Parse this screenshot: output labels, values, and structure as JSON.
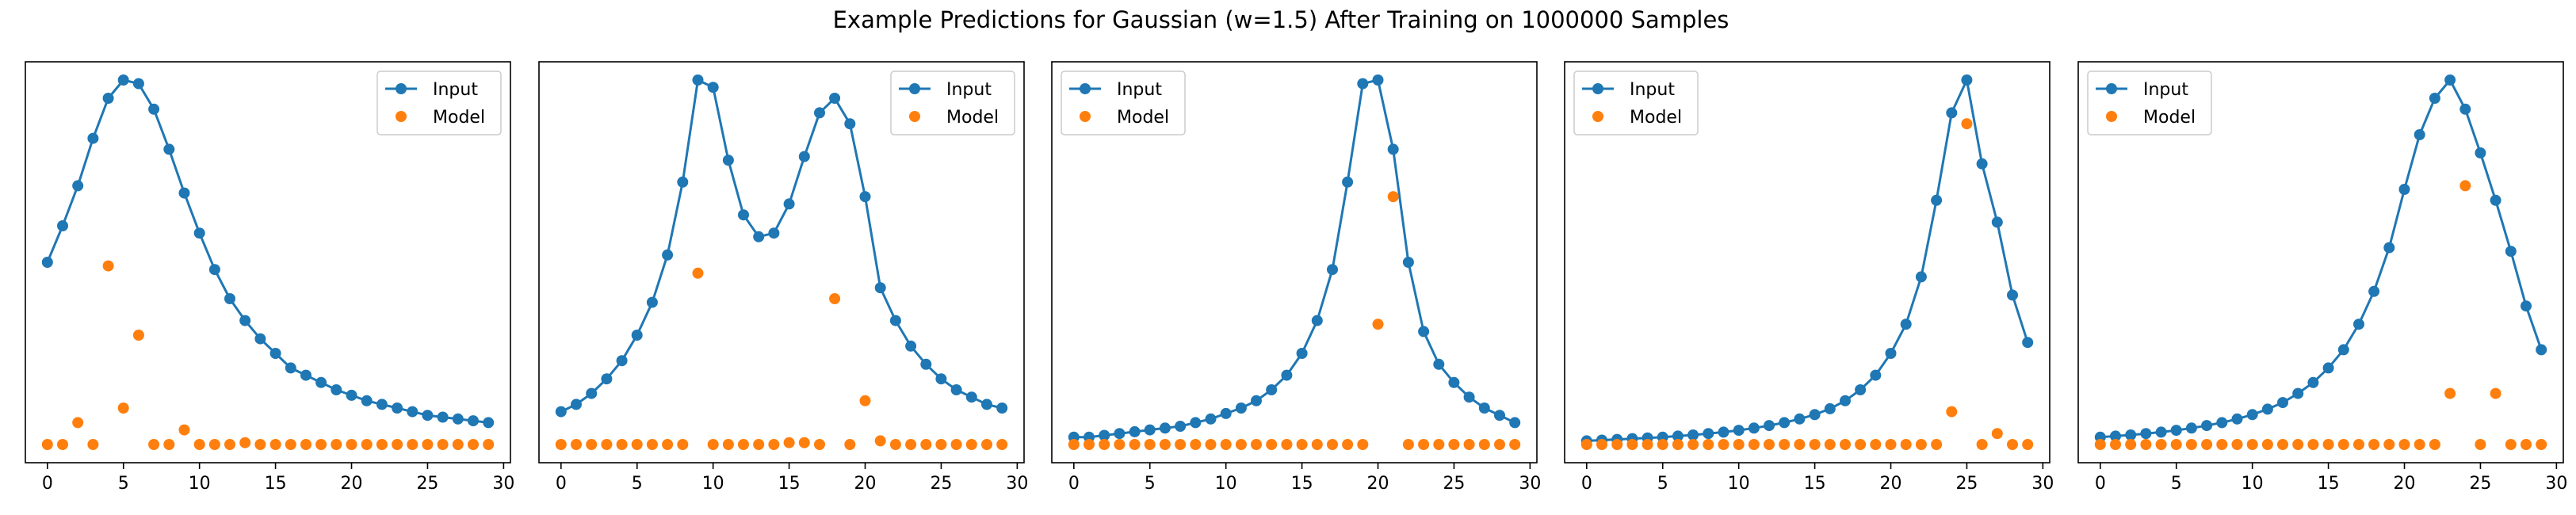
{
  "figure_title": "Example Predictions for Gaussian (w=1.5) After Training on 1000000 Samples",
  "colors": {
    "input": "#1f77b4",
    "model": "#ff7f0e",
    "axes": "#000000",
    "background": "#ffffff"
  },
  "chart_data": [
    {
      "type": "line",
      "title": "",
      "xlabel": "",
      "ylabel": "",
      "xlim": [
        -1.45,
        30.45
      ],
      "ylim": [
        -0.05,
        1.05
      ],
      "xticks": [
        0,
        5,
        10,
        15,
        20,
        25,
        30
      ],
      "yticks_visible": false,
      "grid": false,
      "legend_position": "top-right",
      "x": [
        0,
        1,
        2,
        3,
        4,
        5,
        6,
        7,
        8,
        9,
        10,
        11,
        12,
        13,
        14,
        15,
        16,
        17,
        18,
        19,
        20,
        21,
        22,
        23,
        24,
        25,
        26,
        27,
        28,
        29
      ],
      "series": [
        {
          "name": "Input",
          "style": "line-with-markers",
          "color": "#1f77b4",
          "values": [
            0.5,
            0.6,
            0.71,
            0.84,
            0.95,
            1.0,
            0.99,
            0.92,
            0.81,
            0.69,
            0.58,
            0.48,
            0.4,
            0.34,
            0.29,
            0.25,
            0.21,
            0.19,
            0.17,
            0.15,
            0.135,
            0.12,
            0.11,
            0.1,
            0.09,
            0.08,
            0.075,
            0.07,
            0.065,
            0.06
          ]
        },
        {
          "name": "Model",
          "style": "markers-only",
          "color": "#ff7f0e",
          "values": [
            0,
            0,
            0.06,
            0,
            0.49,
            0.1,
            0.3,
            0,
            0,
            0.04,
            0,
            0,
            0,
            0.005,
            0,
            0,
            0,
            0,
            0,
            0,
            0,
            0,
            0,
            0,
            0,
            0,
            0,
            0,
            0,
            0
          ]
        }
      ]
    },
    {
      "type": "line",
      "title": "",
      "xlabel": "",
      "ylabel": "",
      "xlim": [
        -1.45,
        30.45
      ],
      "ylim": [
        -0.05,
        1.05
      ],
      "xticks": [
        0,
        5,
        10,
        15,
        20,
        25,
        30
      ],
      "yticks_visible": false,
      "grid": false,
      "legend_position": "top-right",
      "x": [
        0,
        1,
        2,
        3,
        4,
        5,
        6,
        7,
        8,
        9,
        10,
        11,
        12,
        13,
        14,
        15,
        16,
        17,
        18,
        19,
        20,
        21,
        22,
        23,
        24,
        25,
        26,
        27,
        28,
        29
      ],
      "series": [
        {
          "name": "Input",
          "style": "line-with-markers",
          "color": "#1f77b4",
          "values": [
            0.09,
            0.11,
            0.14,
            0.18,
            0.23,
            0.3,
            0.39,
            0.52,
            0.72,
            1.0,
            0.98,
            0.78,
            0.63,
            0.57,
            0.58,
            0.66,
            0.79,
            0.91,
            0.95,
            0.88,
            0.68,
            0.43,
            0.34,
            0.27,
            0.22,
            0.18,
            0.15,
            0.13,
            0.11,
            0.1
          ]
        },
        {
          "name": "Model",
          "style": "markers-only",
          "color": "#ff7f0e",
          "values": [
            0,
            0,
            0,
            0,
            0,
            0,
            0,
            0,
            0,
            0.47,
            0,
            0,
            0,
            0,
            0,
            0.005,
            0.005,
            0,
            0.4,
            0,
            0.12,
            0.01,
            0,
            0,
            0,
            0,
            0,
            0,
            0,
            0
          ]
        }
      ]
    },
    {
      "type": "line",
      "title": "",
      "xlabel": "",
      "ylabel": "",
      "xlim": [
        -1.45,
        30.45
      ],
      "ylim": [
        -0.05,
        1.05
      ],
      "xticks": [
        0,
        5,
        10,
        15,
        20,
        25,
        30
      ],
      "yticks_visible": false,
      "grid": false,
      "legend_position": "top-left",
      "x": [
        0,
        1,
        2,
        3,
        4,
        5,
        6,
        7,
        8,
        9,
        10,
        11,
        12,
        13,
        14,
        15,
        16,
        17,
        18,
        19,
        20,
        21,
        22,
        23,
        24,
        25,
        26,
        27,
        28,
        29
      ],
      "series": [
        {
          "name": "Input",
          "style": "line-with-markers",
          "color": "#1f77b4",
          "values": [
            0.02,
            0.02,
            0.025,
            0.03,
            0.035,
            0.04,
            0.045,
            0.05,
            0.06,
            0.07,
            0.085,
            0.1,
            0.12,
            0.15,
            0.19,
            0.25,
            0.34,
            0.48,
            0.72,
            0.99,
            1.0,
            0.81,
            0.5,
            0.31,
            0.22,
            0.17,
            0.13,
            0.1,
            0.08,
            0.06
          ]
        },
        {
          "name": "Model",
          "style": "markers-only",
          "color": "#ff7f0e",
          "values": [
            0,
            0,
            0,
            0,
            0,
            0,
            0,
            0,
            0,
            0,
            0,
            0,
            0,
            0,
            0,
            0,
            0,
            0,
            0,
            0,
            0.33,
            0.68,
            0,
            0,
            0,
            0,
            0,
            0,
            0,
            0
          ]
        }
      ]
    },
    {
      "type": "line",
      "title": "",
      "xlabel": "",
      "ylabel": "",
      "xlim": [
        -1.45,
        30.45
      ],
      "ylim": [
        -0.05,
        1.05
      ],
      "xticks": [
        0,
        5,
        10,
        15,
        20,
        25,
        30
      ],
      "yticks_visible": false,
      "grid": false,
      "legend_position": "top-left",
      "x": [
        0,
        1,
        2,
        3,
        4,
        5,
        6,
        7,
        8,
        9,
        10,
        11,
        12,
        13,
        14,
        15,
        16,
        17,
        18,
        19,
        20,
        21,
        22,
        23,
        24,
        25,
        26,
        27,
        28,
        29
      ],
      "series": [
        {
          "name": "Input",
          "style": "line-with-markers",
          "color": "#1f77b4",
          "values": [
            0.01,
            0.012,
            0.014,
            0.016,
            0.018,
            0.02,
            0.023,
            0.026,
            0.03,
            0.034,
            0.039,
            0.045,
            0.052,
            0.06,
            0.07,
            0.082,
            0.098,
            0.12,
            0.15,
            0.19,
            0.25,
            0.33,
            0.46,
            0.67,
            0.91,
            1.0,
            0.77,
            0.61,
            0.41,
            0.28
          ]
        },
        {
          "name": "Model",
          "style": "markers-only",
          "color": "#ff7f0e",
          "values": [
            0,
            0,
            0,
            0,
            0,
            0,
            0,
            0,
            0,
            0,
            0,
            0,
            0,
            0,
            0,
            0,
            0,
            0,
            0,
            0,
            0,
            0,
            0,
            0,
            0.09,
            0.88,
            0,
            0.03,
            0,
            0
          ]
        }
      ]
    },
    {
      "type": "line",
      "title": "",
      "xlabel": "",
      "ylabel": "",
      "xlim": [
        -1.45,
        30.45
      ],
      "ylim": [
        -0.05,
        1.05
      ],
      "xticks": [
        0,
        5,
        10,
        15,
        20,
        25,
        30
      ],
      "yticks_visible": false,
      "grid": false,
      "legend_position": "top-left",
      "x": [
        0,
        1,
        2,
        3,
        4,
        5,
        6,
        7,
        8,
        9,
        10,
        11,
        12,
        13,
        14,
        15,
        16,
        17,
        18,
        19,
        20,
        21,
        22,
        23,
        24,
        25,
        26,
        27,
        28,
        29
      ],
      "series": [
        {
          "name": "Input",
          "style": "line-with-markers",
          "color": "#1f77b4",
          "values": [
            0.02,
            0.023,
            0.026,
            0.03,
            0.034,
            0.039,
            0.045,
            0.052,
            0.06,
            0.07,
            0.082,
            0.097,
            0.115,
            0.14,
            0.17,
            0.21,
            0.26,
            0.33,
            0.42,
            0.54,
            0.7,
            0.85,
            0.95,
            1.0,
            0.92,
            0.8,
            0.67,
            0.53,
            0.38,
            0.26
          ]
        },
        {
          "name": "Model",
          "style": "markers-only",
          "color": "#ff7f0e",
          "values": [
            0,
            0,
            0,
            0,
            0,
            0,
            0,
            0,
            0,
            0,
            0,
            0,
            0,
            0,
            0,
            0,
            0,
            0,
            0,
            0,
            0,
            0,
            0,
            0.14,
            0.71,
            0,
            0.14,
            0,
            0,
            0
          ]
        }
      ]
    }
  ]
}
